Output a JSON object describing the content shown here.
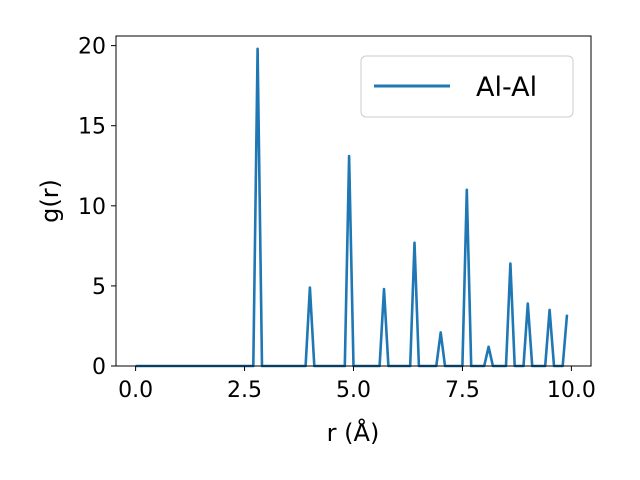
{
  "chart_data": {
    "type": "line",
    "title": "",
    "xlabel": "r (Å)",
    "ylabel": "g(r)",
    "xlim": [
      -0.45,
      10.45
    ],
    "ylim": [
      0,
      20.6
    ],
    "xticks": [
      0.0,
      2.5,
      5.0,
      7.5,
      10.0
    ],
    "xtick_labels": [
      "0.0",
      "2.5",
      "5.0",
      "7.5",
      "10.0"
    ],
    "yticks": [
      0,
      5,
      10,
      15,
      20
    ],
    "ytick_labels": [
      "0",
      "5",
      "10",
      "15",
      "20"
    ],
    "grid": false,
    "legend_position": "upper-right",
    "series": [
      {
        "name": "Al-Al",
        "color": "#1f77b4",
        "x": [
          0.0,
          2.7,
          2.8,
          2.9,
          3.9,
          4.0,
          4.1,
          4.8,
          4.9,
          5.0,
          5.6,
          5.7,
          5.8,
          6.3,
          6.4,
          6.5,
          6.9,
          7.0,
          7.1,
          7.5,
          7.6,
          7.7,
          8.0,
          8.1,
          8.2,
          8.5,
          8.6,
          8.7,
          8.9,
          9.0,
          9.1,
          9.4,
          9.5,
          9.6,
          9.8,
          9.9
        ],
        "y": [
          0,
          0,
          19.8,
          0,
          0,
          4.9,
          0,
          0,
          13.1,
          0,
          0,
          4.8,
          0,
          0,
          7.7,
          0,
          0,
          2.1,
          0,
          0,
          11.0,
          0,
          0,
          1.2,
          0,
          0,
          6.4,
          0,
          0,
          3.9,
          0,
          0,
          3.5,
          0,
          0,
          3.2
        ]
      }
    ]
  }
}
